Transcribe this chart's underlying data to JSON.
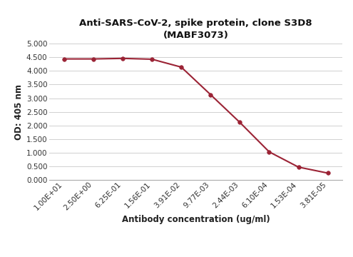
{
  "title_line1": "Anti-SARS-CoV-2, spike protein, clone S3D8",
  "title_line2": "(MABF3073)",
  "xlabel": "Antibody concentration (ug/ml)",
  "ylabel": "OD: 405 nm",
  "x_labels": [
    "1.00E+01",
    "2.50E+00",
    "6.25E-01",
    "1.56E-01",
    "3.91E-02",
    "9.77E-03",
    "2.44E-03",
    "6.10E-04",
    "1.53E-04",
    "3.81E-05"
  ],
  "y_values": [
    4.44,
    4.44,
    4.46,
    4.43,
    4.14,
    3.13,
    2.11,
    1.03,
    0.47,
    0.25
  ],
  "ylim": [
    0.0,
    5.0
  ],
  "yticks": [
    0.0,
    0.5,
    1.0,
    1.5,
    2.0,
    2.5,
    3.0,
    3.5,
    4.0,
    4.5,
    5.0
  ],
  "ytick_labels": [
    "0.000",
    "0.500",
    "1.000",
    "1.500",
    "2.000",
    "2.500",
    "3.000",
    "3.500",
    "4.000",
    "4.500",
    "5.000"
  ],
  "line_color": "#9b2335",
  "marker_color": "#9b2335",
  "marker": "o",
  "marker_size": 4,
  "line_width": 1.5,
  "bg_color": "#ffffff",
  "grid_color": "#d0d0d0",
  "title_fontsize": 9.5,
  "label_fontsize": 8.5,
  "tick_fontsize": 7.5
}
